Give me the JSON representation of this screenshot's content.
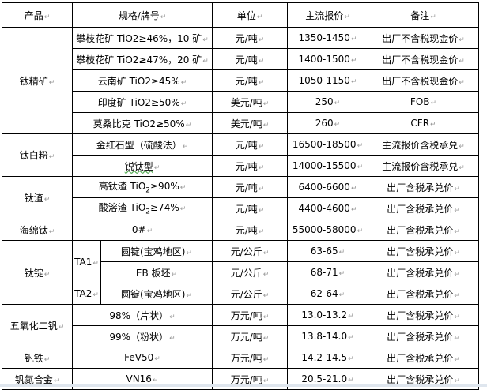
{
  "headers": [
    "产品",
    "规格/牌号",
    "单位",
    "主流报价",
    "备注"
  ],
  "groups": {
    "titanium_concentrate": "钛精矿",
    "titanium_dioxide": "钛白粉",
    "titanium_slag": "钛渣",
    "sponge_titanium": "海绵钛",
    "titanium_ingot": "钛锭",
    "vanadium_pentoxide": "五氧化二钒",
    "ferrovanadium": "钒铁",
    "vanadium_nitrogen": "钒氮合金"
  },
  "sub_grades": {
    "ta1": "TA1",
    "ta2": "TA2"
  },
  "rows": [
    {
      "spec": "攀枝花矿 TiO2≥46%，10 矿",
      "unit": "元/吨",
      "price": "1350-1450",
      "note": "出厂不含税现金价"
    },
    {
      "spec": "攀枝花矿 TiO2≥47%，20 矿",
      "unit": "元/吨",
      "price": "1400-1500",
      "note": "出厂不含税现金价"
    },
    {
      "spec": "云南矿 TiO2≥45%",
      "unit": "元/吨",
      "price": "1050-1150",
      "note": "出厂不含税现金价"
    },
    {
      "spec": "印度矿 TiO2≥50%",
      "unit": "美元/吨",
      "price": "250",
      "note": "FOB"
    },
    {
      "spec": "莫桑比克 TiO2≥50%",
      "unit": "美元/吨",
      "price": "260",
      "note": "CFR"
    },
    {
      "spec": "金红石型（硫酸法）",
      "unit": "元/吨",
      "price": "16500-18500",
      "note": "主流报价含税承兑"
    },
    {
      "spec": "锐钛型",
      "unit": "元/吨",
      "price": "14000-15500",
      "note": "主流报价含税承兑"
    },
    {
      "spec_a": "高钛渣 TiO",
      "spec_sub": "2",
      "spec_b": "≥90%",
      "unit": "元/吨",
      "price": "6400-6600",
      "note": "出厂含税承兑价"
    },
    {
      "spec_a": "酸溶渣 TiO",
      "spec_sub": "2",
      "spec_b": "≥74%",
      "unit": "元/吨",
      "price": "4400-4600",
      "note": "出厂含税承兑价"
    },
    {
      "spec": "0#",
      "unit": "元/吨",
      "price": "55000-58000",
      "note": "出厂含税承兑价"
    },
    {
      "spec": "圆锭(宝鸡地区)",
      "unit": "元/公斤",
      "price": "63-65",
      "note": "出厂含税承兑价"
    },
    {
      "spec": "EB 板坯",
      "unit": "元/公斤",
      "price": "68-71",
      "note": "出厂含税承兑价"
    },
    {
      "spec": "圆锭(宝鸡地区)",
      "unit": "元/公斤",
      "price": "62-64",
      "note": "出厂含税承兑价"
    },
    {
      "spec": "98%（片状）",
      "unit": "万元/吨",
      "price": "13.0-13.2",
      "note": "出厂含税承兑价"
    },
    {
      "spec": "99%（粉状）",
      "unit": "万元/吨",
      "price": "13.8-14.0",
      "note": "出厂含税承兑价"
    },
    {
      "spec": "FeV50",
      "unit": "万元/吨",
      "price": "14.2-14.5",
      "note": "出厂含税承兑价"
    },
    {
      "spec": "VN16",
      "unit": "万元/吨",
      "price": "20.5-21.0",
      "note": "出厂含税承兑价"
    }
  ]
}
